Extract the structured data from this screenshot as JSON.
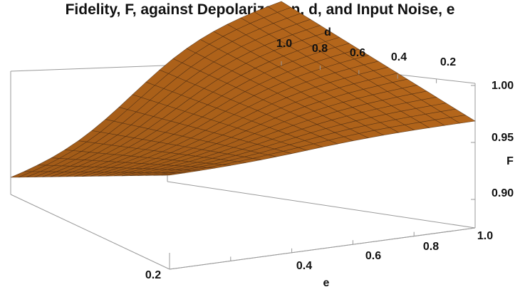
{
  "chart_data": {
    "type": "surface3d",
    "title": "Fidelity, F, against Depolarization, d, and Input Noise, e",
    "xlabel": "e",
    "ylabel": "d",
    "zlabel": "F",
    "xlim": [
      0,
      1
    ],
    "ylim": [
      0,
      1
    ],
    "zlim": [
      0.875,
      1.0
    ],
    "x_ticks": [
      "0.2",
      "0.4",
      "0.6",
      "0.8",
      "1.0"
    ],
    "y_ticks": [
      "1.0",
      "0.8",
      "0.6",
      "0.4",
      "0.2"
    ],
    "z_ticks": [
      "0.90",
      "0.95",
      "1.00"
    ],
    "surface_color": "#b5661b",
    "mesh_color": "#4a2a10",
    "grid_divisions": 20,
    "edge_profile_d0": {
      "e": [
        0.0,
        0.25,
        0.5,
        0.75,
        1.0
      ],
      "F": [
        0.985,
        0.99,
        0.995,
        0.998,
        1.0
      ]
    },
    "edge_profile_d1": {
      "e": [
        0.0,
        0.25,
        0.5,
        0.75,
        1.0
      ],
      "F": [
        0.895,
        0.92,
        0.955,
        0.985,
        0.998
      ]
    }
  }
}
